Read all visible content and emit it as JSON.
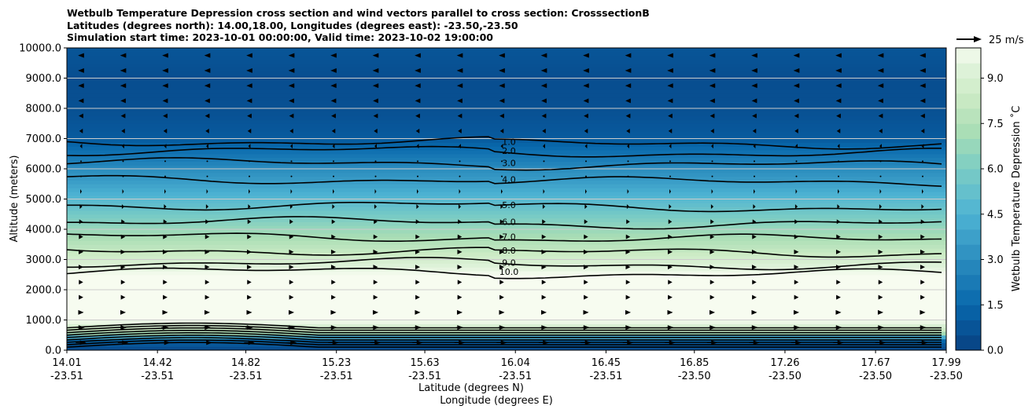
{
  "chart_data": {
    "type": "heatmap",
    "title_lines": [
      "Wetbulb Temperature Depression cross section and wind vectors parallel to cross section: CrosssectionB",
      "Latitudes (degrees north): 14.00,18.00, Longitudes (degrees east): -23.50,-23.50",
      "Simulation start time: 2023-10-01 00:00:00, Valid time: 2023-10-02 19:00:00"
    ],
    "ylabel": "Altitude (meters)",
    "xlabel": "Latitude (degrees N)",
    "xlabel2": "Longitude (degrees E)",
    "ylim": [
      0,
      10000
    ],
    "y_ticks": [
      "0.0",
      "1000.0",
      "2000.0",
      "3000.0",
      "4000.0",
      "5000.0",
      "6000.0",
      "7000.0",
      "8000.0",
      "9000.0",
      "10000.0"
    ],
    "x_ticks_lat": [
      "14.01",
      "14.42",
      "14.82",
      "15.23",
      "15.63",
      "16.04",
      "16.45",
      "16.85",
      "17.26",
      "17.67",
      "17.99"
    ],
    "x_ticks_lon": [
      "-23.51",
      "-23.51",
      "-23.51",
      "-23.51",
      "-23.51",
      "-23.51",
      "-23.51",
      "-23.50",
      "-23.50",
      "-23.50",
      "-23.50"
    ],
    "colorbar": {
      "label": "Wetbulb Temperature Depression ˚C",
      "range": [
        0,
        10
      ],
      "ticks": [
        "0.0",
        "1.5",
        "3.0",
        "4.5",
        "6.0",
        "7.5",
        "9.0"
      ]
    },
    "quiver_key": "25 m/s",
    "depression_profile": [
      {
        "alt": 0,
        "value": 0.3
      },
      {
        "alt": 300,
        "value": 1.2
      },
      {
        "alt": 600,
        "value": 8.0
      },
      {
        "alt": 1000,
        "value": 10.0
      },
      {
        "alt": 2500,
        "value": 10.0
      },
      {
        "alt": 3000,
        "value": 8.8
      },
      {
        "alt": 3500,
        "value": 7.7
      },
      {
        "alt": 4000,
        "value": 6.8
      },
      {
        "alt": 4500,
        "value": 5.8
      },
      {
        "alt": 5000,
        "value": 4.8
      },
      {
        "alt": 5500,
        "value": 3.8
      },
      {
        "alt": 6000,
        "value": 3.0
      },
      {
        "alt": 6500,
        "value": 2.0
      },
      {
        "alt": 7000,
        "value": 1.0
      },
      {
        "alt": 8000,
        "value": 0.6
      },
      {
        "alt": 9000,
        "value": 0.5
      },
      {
        "alt": 10000,
        "value": 0.8
      }
    ],
    "contours": [
      {
        "label": "1.0",
        "alt": 6900
      },
      {
        "label": "2.0",
        "alt": 6600
      },
      {
        "label": "3.0",
        "alt": 6200
      },
      {
        "label": "4.0",
        "alt": 5650
      },
      {
        "label": "5.0",
        "alt": 4800
      },
      {
        "label": "6.0",
        "alt": 4250
      },
      {
        "label": "7.0",
        "alt": 3750
      },
      {
        "label": "8.0",
        "alt": 3300
      },
      {
        "label": "9.0",
        "alt": 2900
      },
      {
        "label": "10.0",
        "alt": 2600
      }
    ],
    "wind_profile": [
      {
        "alt": 0,
        "u": 12
      },
      {
        "alt": 1000,
        "u": 6
      },
      {
        "alt": 2000,
        "u": 4
      },
      {
        "alt": 3000,
        "u": 5
      },
      {
        "alt": 4000,
        "u": 4
      },
      {
        "alt": 5000,
        "u": 2
      },
      {
        "alt": 6000,
        "u": 0
      },
      {
        "alt": 7000,
        "u": -3
      },
      {
        "alt": 8000,
        "u": -5
      },
      {
        "alt": 9000,
        "u": -6
      },
      {
        "alt": 10000,
        "u": -6
      }
    ]
  }
}
